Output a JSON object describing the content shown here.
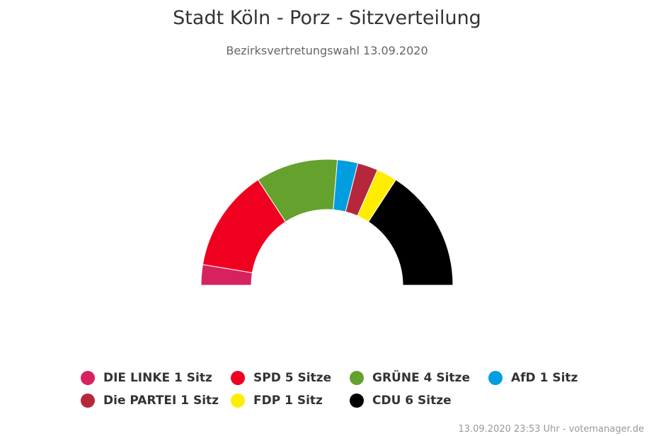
{
  "title": "Stadt Köln - Porz - Sitzverteilung",
  "subtitle": "Bezirksvertretungswahl 13.09.2020",
  "credits": "13.09.2020 23:53 Uhr - votemanager.de",
  "chart_data": {
    "type": "pie",
    "variant": "semicircle-parliament",
    "total_seats": 19,
    "series": [
      {
        "name": "DIE LINKE",
        "seats": 1,
        "color": "#d6225e",
        "legend": "DIE LINKE 1 Sitz"
      },
      {
        "name": "SPD",
        "seats": 5,
        "color": "#f00020",
        "legend": "SPD 5 Sitze"
      },
      {
        "name": "GRÜNE",
        "seats": 4,
        "color": "#64a12d",
        "legend": "GRÜNE 4 Sitze"
      },
      {
        "name": "AfD",
        "seats": 1,
        "color": "#009ee0",
        "legend": "AfD 1 Sitz"
      },
      {
        "name": "Die PARTEI",
        "seats": 1,
        "color": "#b5283b",
        "legend": "Die PARTEI 1 Sitz"
      },
      {
        "name": "FDP",
        "seats": 1,
        "color": "#ffed00",
        "legend": "FDP 1 Sitz"
      },
      {
        "name": "CDU",
        "seats": 6,
        "color": "#000000",
        "legend": "CDU 6 Sitze"
      }
    ],
    "legend_order": [
      0,
      1,
      2,
      3,
      4,
      5,
      6
    ],
    "legend_placement": "bottom-center"
  }
}
